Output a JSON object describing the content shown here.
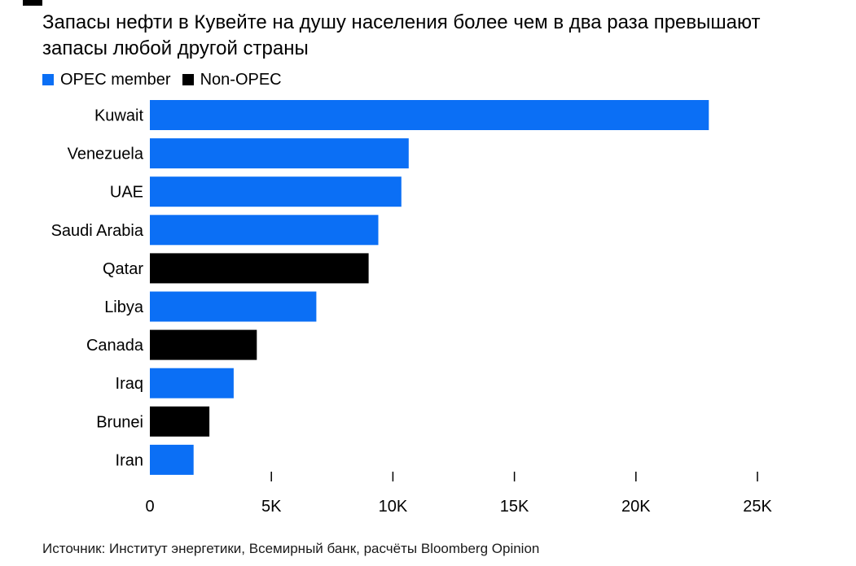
{
  "chart_data": {
    "type": "bar",
    "orientation": "horizontal",
    "title": "Запасы нефти в Кувейте на душу населения более чем в два раза превышают запасы любой другой страны",
    "legend": [
      {
        "name": "OPEC member",
        "color": "#0b6ff5"
      },
      {
        "name": "Non-OPEC",
        "color": "#000000"
      }
    ],
    "categories": [
      "Kuwait",
      "Venezuela",
      "UAE",
      "Saudi Arabia",
      "Qatar",
      "Libya",
      "Canada",
      "Iraq",
      "Brunei",
      "Iran"
    ],
    "values": [
      23000,
      10650,
      10350,
      9400,
      9000,
      6850,
      4400,
      3450,
      2450,
      1800
    ],
    "groups": [
      "OPEC member",
      "OPEC member",
      "OPEC member",
      "OPEC member",
      "Non-OPEC",
      "OPEC member",
      "Non-OPEC",
      "OPEC member",
      "Non-OPEC",
      "OPEC member"
    ],
    "xlim": [
      0,
      25000
    ],
    "xticks": [
      0,
      5000,
      10000,
      15000,
      20000,
      25000
    ],
    "xtick_labels": [
      "0",
      "5K",
      "10K",
      "15K",
      "20K",
      "25K"
    ],
    "xlabel": "",
    "ylabel": "",
    "grid": false,
    "legend_position": "top-left"
  },
  "source": "Источник: Институт энергетики, Всемирный банк, расчёты Bloomberg Opinion"
}
